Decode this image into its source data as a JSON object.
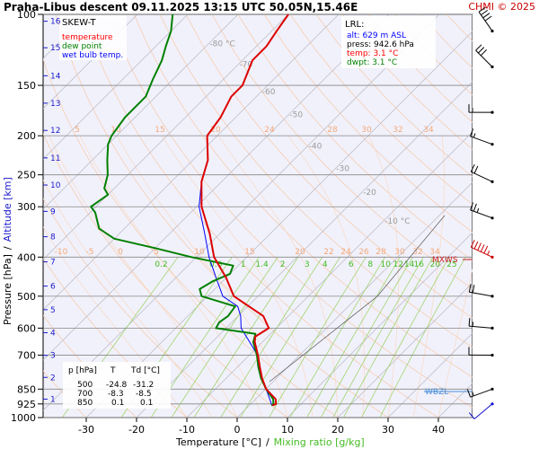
{
  "header": {
    "title": "Praha-Libus   descent   09.11.2025 13:15 UTC   50.05N,15.46E",
    "copyright": "CHMI © 2025"
  },
  "legend": {
    "title": "SKEW-T",
    "items": [
      {
        "label": "temperature",
        "color": "#ff0000"
      },
      {
        "label": "dew point",
        "color": "#008000"
      },
      {
        "label": "wet bulb temp.",
        "color": "#0000ff"
      }
    ]
  },
  "lrl_box": {
    "title": "LRL:",
    "lines": [
      {
        "text": "alt: 629 m ASL",
        "color": "#0000ff"
      },
      {
        "text": "press: 942.6 hPa",
        "color": "#000000"
      },
      {
        "text": "temp: 3.1 °C",
        "color": "#ff0000"
      },
      {
        "text": "dwpt: 3.1 °C",
        "color": "#008000"
      }
    ]
  },
  "level_table": {
    "header": [
      "p [hPa]",
      "T",
      "Td [°C]"
    ],
    "rows": [
      [
        "500",
        "-24.8",
        "-31.2"
      ],
      [
        "700",
        "-8.3",
        "-8.5"
      ],
      [
        "850",
        "0.1",
        "0.1"
      ]
    ]
  },
  "markers": {
    "mxws": "MXWS",
    "wbzl": "WBZL"
  },
  "chart_data": {
    "type": "line",
    "title": "SKEW-T",
    "xlabel": "Temperature [°C]",
    "xlabel_sep": "/",
    "xlabel2": "Mixing ratio [g/kg]",
    "ylabel": "Pressure [hPa]",
    "ylabel_sep": "/",
    "ylabel2": "Altitude [km]",
    "xlim": [
      -35,
      50
    ],
    "ylim": [
      1000,
      100
    ],
    "y_scale": "log",
    "skew": "45°",
    "x_ticks": [
      "-30",
      "-20",
      "-10",
      "0",
      "10",
      "20",
      "30",
      "40"
    ],
    "pressure_levels": [
      100,
      150,
      200,
      250,
      300,
      400,
      500,
      600,
      700,
      850,
      925,
      1000
    ],
    "pressure_ticks": [
      "100",
      "150",
      "200",
      "250",
      "300",
      "400",
      "500",
      "600",
      "700",
      "850",
      "925",
      "1000"
    ],
    "altitude_ticks_km": [
      "1",
      "2",
      "3",
      "4",
      "5",
      "6",
      "7",
      "8",
      "9",
      "10",
      "11",
      "12",
      "13",
      "14",
      "15",
      "16"
    ],
    "isotherm_labels": [
      "-80 °C",
      "-70",
      "-60",
      "-50",
      "-40",
      "-30",
      "-20",
      "-10 °C"
    ],
    "mixing_ratio_labels": [
      "0.2",
      "0.6",
      "1",
      "1.4",
      "2",
      "3",
      "4",
      "6",
      "8",
      "10",
      "12",
      "14",
      "16",
      "20",
      "25"
    ],
    "theta_e_labels_upper": [
      "5",
      "10",
      "15",
      "20",
      "24",
      "28",
      "30",
      "32",
      "34"
    ],
    "theta_e_labels_lower": [
      "-10",
      "-5",
      "0",
      "5",
      "10",
      "15",
      "20",
      "22",
      "24",
      "26",
      "28",
      "30",
      "32",
      "34"
    ],
    "series": [
      {
        "name": "temperature",
        "color": "#dd0000",
        "points": [
          [
            933,
            4.6
          ],
          [
            925,
            5
          ],
          [
            900,
            4
          ],
          [
            850,
            0.1
          ],
          [
            800,
            -2.8
          ],
          [
            750,
            -5.5
          ],
          [
            700,
            -8.3
          ],
          [
            650,
            -11.5
          ],
          [
            630,
            -12.5
          ],
          [
            600,
            -11.5
          ],
          [
            560,
            -15
          ],
          [
            500,
            -24.8
          ],
          [
            450,
            -30
          ],
          [
            400,
            -36.5
          ],
          [
            350,
            -42
          ],
          [
            300,
            -49
          ],
          [
            260,
            -54
          ],
          [
            230,
            -57
          ],
          [
            200,
            -62
          ],
          [
            180,
            -63
          ],
          [
            160,
            -65
          ],
          [
            150,
            -65
          ],
          [
            130,
            -68
          ],
          [
            120,
            -68
          ],
          [
            110,
            -69
          ],
          [
            100,
            -70
          ]
        ]
      },
      {
        "name": "dew point",
        "color": "#008000",
        "points": [
          [
            933,
            4.4
          ],
          [
            925,
            4.5
          ],
          [
            900,
            3.5
          ],
          [
            850,
            0.1
          ],
          [
            800,
            -3
          ],
          [
            750,
            -5.8
          ],
          [
            700,
            -8.5
          ],
          [
            650,
            -11.8
          ],
          [
            620,
            -13
          ],
          [
            600,
            -22
          ],
          [
            580,
            -22.5
          ],
          [
            560,
            -22
          ],
          [
            530,
            -22.5
          ],
          [
            500,
            -31.2
          ],
          [
            480,
            -33
          ],
          [
            460,
            -32
          ],
          [
            440,
            -30
          ],
          [
            420,
            -31
          ],
          [
            400,
            -41
          ],
          [
            380,
            -50
          ],
          [
            360,
            -60
          ],
          [
            340,
            -65
          ],
          [
            310,
            -69
          ],
          [
            300,
            -71
          ],
          [
            280,
            -70
          ],
          [
            270,
            -72
          ],
          [
            250,
            -74
          ],
          [
            230,
            -77
          ],
          [
            210,
            -80
          ],
          [
            200,
            -81
          ],
          [
            180,
            -82
          ],
          [
            160,
            -82
          ],
          [
            145,
            -84
          ],
          [
            130,
            -86
          ],
          [
            120,
            -88
          ],
          [
            110,
            -90
          ],
          [
            100,
            -93
          ]
        ]
      },
      {
        "name": "wet bulb temp.",
        "color": "#0000ff",
        "points": [
          [
            933,
            4.5
          ],
          [
            850,
            0.1
          ],
          [
            800,
            -2.9
          ],
          [
            750,
            -5.6
          ],
          [
            700,
            -8.4
          ],
          [
            650,
            -12.5
          ],
          [
            600,
            -17
          ],
          [
            560,
            -19.5
          ],
          [
            530,
            -22
          ],
          [
            500,
            -27
          ],
          [
            450,
            -32
          ],
          [
            400,
            -37.5
          ],
          [
            350,
            -43
          ],
          [
            300,
            -49.5
          ],
          [
            260,
            -54
          ],
          [
            230,
            -57
          ]
        ]
      }
    ],
    "wind_barbs": [
      {
        "p": 110,
        "dir": 325,
        "speed_kt": 40
      },
      {
        "p": 135,
        "dir": 315,
        "speed_kt": 30
      },
      {
        "p": 175,
        "dir": 270,
        "speed_kt": 15
      },
      {
        "p": 210,
        "dir": 290,
        "speed_kt": 15
      },
      {
        "p": 260,
        "dir": 295,
        "speed_kt": 20
      },
      {
        "p": 320,
        "dir": 290,
        "speed_kt": 25
      },
      {
        "p": 400,
        "dir": 295,
        "speed_kt": 60
      },
      {
        "p": 500,
        "dir": 280,
        "speed_kt": 20
      },
      {
        "p": 600,
        "dir": 275,
        "speed_kt": 15
      },
      {
        "p": 700,
        "dir": 270,
        "speed_kt": 10
      },
      {
        "p": 850,
        "dir": 250,
        "speed_kt": 15
      },
      {
        "p": 925,
        "dir": 230,
        "speed_kt": 10
      }
    ]
  }
}
